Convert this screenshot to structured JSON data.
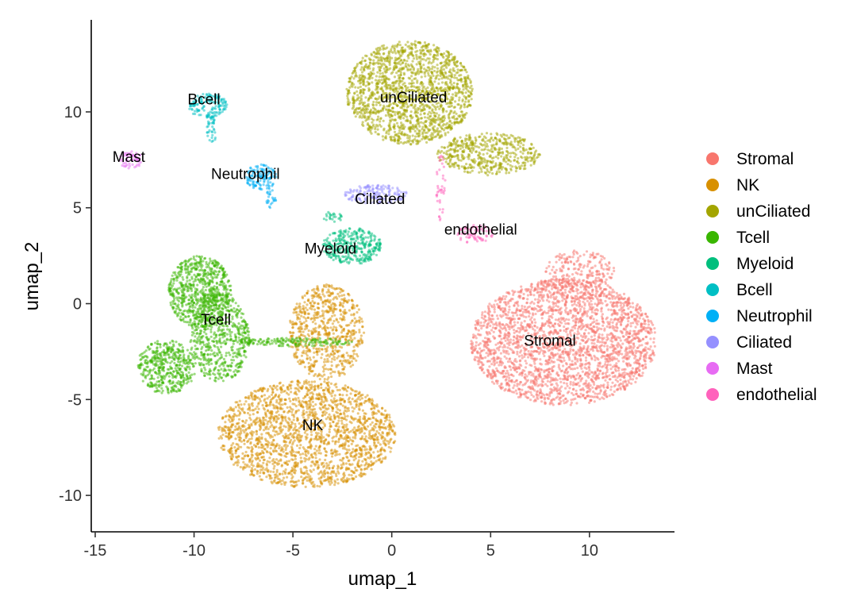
{
  "chart_data": {
    "type": "scatter",
    "xlabel": "umap_1",
    "ylabel": "umap_2",
    "xlim": [
      -15.2,
      14.3
    ],
    "ylim": [
      -11.9,
      14.8
    ],
    "xticks": [
      -15,
      -10,
      -5,
      0,
      5,
      10
    ],
    "yticks": [
      -10,
      -5,
      0,
      5,
      10
    ],
    "xtick_labels": [
      "-15",
      "-10",
      "-5",
      "0",
      "5",
      "10"
    ],
    "ytick_labels": [
      "-10",
      "-5",
      "0",
      "5",
      "10"
    ],
    "grid": false,
    "legend_position": "right",
    "series": [
      {
        "name": "Stromal",
        "color": "#F8766D",
        "label_position": [
          8.0,
          -2.2
        ],
        "regions": [
          {
            "cx": 8.7,
            "cy": -2.0,
            "rx": 4.7,
            "ry": 3.3,
            "n": 2600
          },
          {
            "cx": 9.5,
            "cy": 1.5,
            "rx": 1.8,
            "ry": 1.3,
            "n": 260
          }
        ]
      },
      {
        "name": "NK",
        "color": "#D89000",
        "label_position": [
          -4.0,
          -6.6
        ],
        "regions": [
          {
            "cx": -4.3,
            "cy": -6.8,
            "rx": 4.5,
            "ry": 2.8,
            "n": 2000
          },
          {
            "cx": -3.3,
            "cy": -1.5,
            "rx": 1.9,
            "ry": 2.5,
            "n": 700
          }
        ]
      },
      {
        "name": "unCiliated",
        "color": "#A3A500",
        "label_position": [
          1.1,
          10.5
        ],
        "regions": [
          {
            "cx": 0.9,
            "cy": 11.0,
            "rx": 3.2,
            "ry": 2.7,
            "n": 1700
          },
          {
            "cx": 4.9,
            "cy": 7.8,
            "rx": 2.6,
            "ry": 1.1,
            "n": 500
          }
        ]
      },
      {
        "name": "Tcell",
        "color": "#39B600",
        "label_position": [
          -8.9,
          -1.1
        ],
        "regions": [
          {
            "cx": -9.7,
            "cy": 0.6,
            "rx": 1.6,
            "ry": 1.9,
            "n": 700
          },
          {
            "cx": -11.4,
            "cy": -3.3,
            "rx": 1.5,
            "ry": 1.4,
            "n": 450
          },
          {
            "cx": -8.7,
            "cy": -1.8,
            "rx": 1.5,
            "ry": 2.3,
            "n": 600
          },
          {
            "cx": -4.8,
            "cy": -2.0,
            "rx": 2.8,
            "ry": 0.22,
            "n": 160
          }
        ]
      },
      {
        "name": "Myeloid",
        "color": "#00BF7D",
        "label_position": [
          -3.1,
          2.6
        ],
        "regions": [
          {
            "cx": -2.0,
            "cy": 3.0,
            "rx": 1.5,
            "ry": 0.95,
            "n": 350
          },
          {
            "cx": -3.0,
            "cy": 4.5,
            "rx": 0.5,
            "ry": 0.3,
            "n": 25
          }
        ]
      },
      {
        "name": "Bcell",
        "color": "#00BFC4",
        "label_position": [
          -9.5,
          10.4
        ],
        "regions": [
          {
            "cx": -9.3,
            "cy": 10.3,
            "rx": 1.0,
            "ry": 0.65,
            "n": 160
          },
          {
            "cx": -9.1,
            "cy": 9.0,
            "rx": 0.25,
            "ry": 0.9,
            "n": 35
          }
        ]
      },
      {
        "name": "Neutrophil",
        "color": "#00B0F6",
        "label_position": [
          -7.4,
          6.5
        ],
        "regions": [
          {
            "cx": -6.6,
            "cy": 6.6,
            "rx": 0.85,
            "ry": 0.65,
            "n": 130
          },
          {
            "cx": -6.1,
            "cy": 5.5,
            "rx": 0.25,
            "ry": 0.55,
            "n": 25
          }
        ]
      },
      {
        "name": "Ciliated",
        "color": "#9590FF",
        "label_position": [
          -0.6,
          5.2
        ],
        "regions": [
          {
            "cx": -0.8,
            "cy": 5.7,
            "rx": 1.6,
            "ry": 0.5,
            "n": 160
          }
        ]
      },
      {
        "name": "Mast",
        "color": "#E76BF3",
        "label_position": [
          -13.3,
          7.4
        ],
        "regions": [
          {
            "cx": -13.2,
            "cy": 7.5,
            "rx": 0.6,
            "ry": 0.45,
            "n": 60
          }
        ]
      },
      {
        "name": "endothelial",
        "color": "#FF62BC",
        "label_position": [
          4.5,
          3.6
        ],
        "regions": [
          {
            "cx": 4.2,
            "cy": 3.6,
            "rx": 0.9,
            "ry": 0.5,
            "n": 70
          },
          {
            "cx": 2.5,
            "cy": 6.0,
            "rx": 0.25,
            "ry": 1.8,
            "n": 40
          }
        ]
      }
    ]
  }
}
